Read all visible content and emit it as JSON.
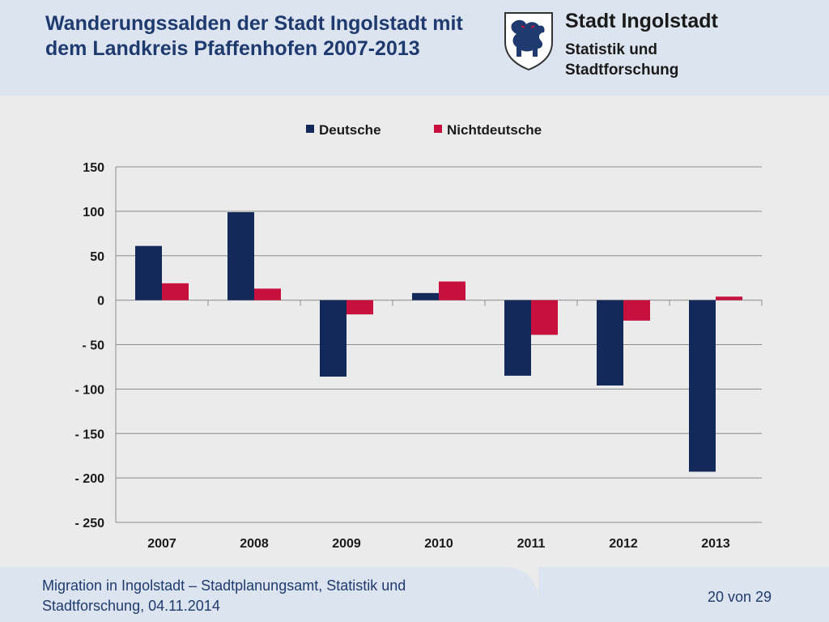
{
  "header": {
    "title": "Wanderungssalden der Stadt Ingolstadt mit dem Landkreis Pfaffenhofen 2007-2013",
    "org_name": "Stadt Ingolstadt",
    "org_sub": "Statistik und Stadtforschung",
    "crest_icon": "ingolstadt-panther-crest-icon"
  },
  "footer": {
    "text": "Migration in Ingolstadt – Stadtplanungsamt, Statistik und Stadtforschung, 04.11.2014",
    "page": "20 von 29"
  },
  "colors": {
    "deutsche": "#13295a",
    "nichtdeutsche": "#c8103e",
    "title": "#1f3a6e"
  },
  "chart_data": {
    "type": "bar",
    "title": "",
    "xlabel": "",
    "ylabel": "",
    "categories": [
      "2007",
      "2008",
      "2009",
      "2010",
      "2011",
      "2012",
      "2013"
    ],
    "series": [
      {
        "name": "Deutsche",
        "values": [
          61,
          99,
          -86,
          8,
          -85,
          -96,
          -193
        ]
      },
      {
        "name": "Nichtdeutsche",
        "values": [
          19,
          13,
          -16,
          21,
          -39,
          -23,
          4
        ]
      }
    ],
    "ylim": [
      -250,
      150
    ],
    "yticks": [
      150,
      100,
      50,
      0,
      -50,
      -100,
      -150,
      -200,
      -250
    ],
    "ytick_labels": [
      "150",
      "100",
      "50",
      "0",
      "- 50",
      "- 100",
      "- 150",
      "- 200",
      "- 250"
    ],
    "grid": true,
    "legend_position": "top"
  }
}
